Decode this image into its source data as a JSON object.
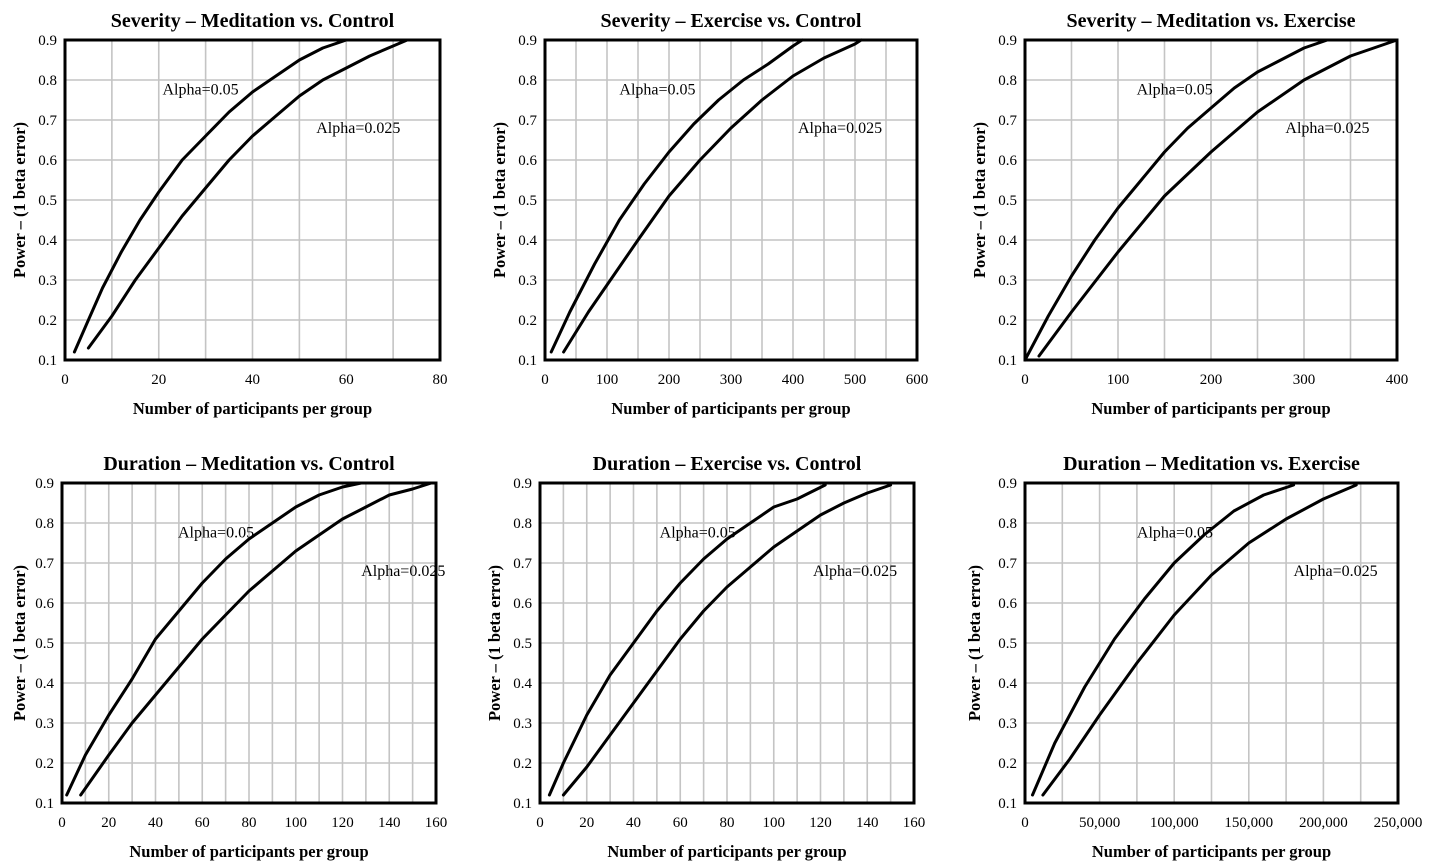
{
  "chart_data": [
    {
      "type": "line",
      "title": "Severity – Meditation vs. Control",
      "xlabel": "Number of participants per group",
      "ylabel": "Power – (1 beta error)",
      "xlim": [
        0,
        80
      ],
      "ylim": [
        0.1,
        0.9
      ],
      "xticks": [
        0,
        20,
        40,
        60,
        80
      ],
      "xtick_labels": [
        "0",
        "20",
        "40",
        "60",
        "80"
      ],
      "yticks": [
        0.1,
        0.2,
        0.3,
        0.4,
        0.5,
        0.6,
        0.7,
        0.8,
        0.9
      ],
      "ytick_labels": [
        "0.1",
        "0.2",
        "0.3",
        "0.4",
        "0.5",
        "0.6",
        "0.7",
        "0.8",
        "0.9"
      ],
      "grid": true,
      "series": [
        {
          "name": "Alpha=0.05",
          "x": [
            2,
            5,
            8,
            12,
            16,
            20,
            25,
            30,
            35,
            40,
            45,
            50,
            55,
            60
          ],
          "y": [
            0.12,
            0.2,
            0.28,
            0.37,
            0.45,
            0.52,
            0.6,
            0.66,
            0.72,
            0.77,
            0.81,
            0.85,
            0.88,
            0.9
          ]
        },
        {
          "name": "Alpha=0.025",
          "x": [
            5,
            10,
            15,
            20,
            25,
            30,
            35,
            40,
            45,
            50,
            55,
            60,
            65,
            70,
            73
          ],
          "y": [
            0.13,
            0.21,
            0.3,
            0.38,
            0.46,
            0.53,
            0.6,
            0.66,
            0.71,
            0.76,
            0.8,
            0.83,
            0.86,
            0.885,
            0.9
          ]
        }
      ]
    },
    {
      "type": "line",
      "title": "Severity – Exercise vs. Control",
      "xlabel": "Number of participants per group",
      "ylabel": "Power – (1 beta error)",
      "xlim": [
        0,
        600
      ],
      "ylim": [
        0.1,
        0.9
      ],
      "xticks": [
        0,
        100,
        200,
        300,
        400,
        500,
        600
      ],
      "xtick_labels": [
        "0",
        "100",
        "200",
        "300",
        "400",
        "500",
        "600"
      ],
      "yticks": [
        0.1,
        0.2,
        0.3,
        0.4,
        0.5,
        0.6,
        0.7,
        0.8,
        0.9
      ],
      "ytick_labels": [
        "0.1",
        "0.2",
        "0.3",
        "0.4",
        "0.5",
        "0.6",
        "0.7",
        "0.8",
        "0.9"
      ],
      "grid": true,
      "series": [
        {
          "name": "Alpha=0.05",
          "x": [
            10,
            40,
            80,
            120,
            160,
            200,
            240,
            280,
            320,
            360,
            400,
            415
          ],
          "y": [
            0.12,
            0.22,
            0.34,
            0.45,
            0.54,
            0.62,
            0.69,
            0.75,
            0.8,
            0.84,
            0.885,
            0.9
          ]
        },
        {
          "name": "Alpha=0.025",
          "x": [
            30,
            70,
            110,
            150,
            200,
            250,
            300,
            350,
            400,
            450,
            500,
            510
          ],
          "y": [
            0.12,
            0.22,
            0.31,
            0.4,
            0.51,
            0.6,
            0.68,
            0.75,
            0.81,
            0.855,
            0.89,
            0.9
          ]
        }
      ]
    },
    {
      "type": "line",
      "title": "Severity – Meditation vs. Exercise",
      "xlabel": "Number of participants per group",
      "ylabel": "Power – (1 beta error)",
      "xlim": [
        0,
        400
      ],
      "ylim": [
        0.1,
        0.9
      ],
      "xticks": [
        0,
        100,
        200,
        300,
        400
      ],
      "xtick_labels": [
        "0",
        "100",
        "200",
        "300",
        "400"
      ],
      "yticks": [
        0.1,
        0.2,
        0.3,
        0.4,
        0.5,
        0.6,
        0.7,
        0.8,
        0.9
      ],
      "ytick_labels": [
        "0.1",
        "0.2",
        "0.3",
        "0.4",
        "0.5",
        "0.6",
        "0.7",
        "0.8",
        "0.9"
      ],
      "grid": true,
      "series": [
        {
          "name": "Alpha=0.05",
          "x": [
            0,
            25,
            50,
            75,
            100,
            125,
            150,
            175,
            200,
            225,
            250,
            275,
            300,
            325
          ],
          "y": [
            0.1,
            0.21,
            0.31,
            0.4,
            0.48,
            0.55,
            0.62,
            0.68,
            0.73,
            0.78,
            0.82,
            0.85,
            0.88,
            0.9
          ]
        },
        {
          "name": "Alpha=0.025",
          "x": [
            15,
            50,
            100,
            150,
            200,
            250,
            300,
            350,
            400
          ],
          "y": [
            0.11,
            0.22,
            0.37,
            0.51,
            0.62,
            0.72,
            0.8,
            0.86,
            0.9
          ]
        }
      ]
    },
    {
      "type": "line",
      "title": "Duration – Meditation vs. Control",
      "xlabel": "Number of participants per group",
      "ylabel": "Power – (1 beta error)",
      "xlim": [
        0,
        160
      ],
      "ylim": [
        0.1,
        0.9
      ],
      "xticks": [
        0,
        20,
        40,
        60,
        80,
        100,
        120,
        140,
        160
      ],
      "xtick_labels": [
        "0",
        "20",
        "40",
        "60",
        "80",
        "100",
        "120",
        "140",
        "160"
      ],
      "yticks": [
        0.1,
        0.2,
        0.3,
        0.4,
        0.5,
        0.6,
        0.7,
        0.8,
        0.9
      ],
      "ytick_labels": [
        "0.1",
        "0.2",
        "0.3",
        "0.4",
        "0.5",
        "0.6",
        "0.7",
        "0.8",
        "0.9"
      ],
      "grid": true,
      "series": [
        {
          "name": "Alpha=0.05",
          "x": [
            2,
            10,
            20,
            30,
            40,
            50,
            60,
            70,
            80,
            90,
            100,
            110,
            120,
            128
          ],
          "y": [
            0.12,
            0.22,
            0.32,
            0.41,
            0.51,
            0.58,
            0.65,
            0.71,
            0.76,
            0.8,
            0.84,
            0.87,
            0.89,
            0.9
          ]
        },
        {
          "name": "Alpha=0.025",
          "x": [
            8,
            20,
            30,
            40,
            50,
            60,
            70,
            80,
            90,
            100,
            110,
            120,
            130,
            140,
            150,
            158
          ],
          "y": [
            0.12,
            0.22,
            0.3,
            0.37,
            0.44,
            0.51,
            0.57,
            0.63,
            0.68,
            0.73,
            0.77,
            0.81,
            0.84,
            0.87,
            0.885,
            0.9
          ]
        }
      ]
    },
    {
      "type": "line",
      "title": "Duration – Exercise vs. Control",
      "xlabel": "Number of participants per group",
      "ylabel": "Power – (1 beta error)",
      "xlim": [
        0,
        160
      ],
      "ylim": [
        0.1,
        0.9
      ],
      "xticks": [
        0,
        20,
        40,
        60,
        80,
        100,
        120,
        140,
        160
      ],
      "xtick_labels": [
        "0",
        "20",
        "40",
        "60",
        "80",
        "100",
        "120",
        "140",
        "160"
      ],
      "yticks": [
        0.1,
        0.2,
        0.3,
        0.4,
        0.5,
        0.6,
        0.7,
        0.8,
        0.9
      ],
      "ytick_labels": [
        "0.1",
        "0.2",
        "0.3",
        "0.4",
        "0.5",
        "0.6",
        "0.7",
        "0.8",
        "0.9"
      ],
      "grid": true,
      "series": [
        {
          "name": "Alpha=0.05",
          "x": [
            4,
            10,
            20,
            30,
            40,
            50,
            60,
            70,
            80,
            90,
            100,
            110,
            122
          ],
          "y": [
            0.12,
            0.2,
            0.32,
            0.42,
            0.5,
            0.58,
            0.65,
            0.71,
            0.76,
            0.8,
            0.84,
            0.86,
            0.895
          ]
        },
        {
          "name": "Alpha=0.025",
          "x": [
            10,
            20,
            30,
            40,
            50,
            60,
            70,
            80,
            90,
            100,
            110,
            120,
            130,
            140,
            150
          ],
          "y": [
            0.12,
            0.19,
            0.27,
            0.35,
            0.43,
            0.51,
            0.58,
            0.64,
            0.69,
            0.74,
            0.78,
            0.82,
            0.85,
            0.875,
            0.895
          ]
        }
      ]
    },
    {
      "type": "line",
      "title": "Duration – Meditation vs. Exercise",
      "xlabel": "Number of participants per group",
      "ylabel": "Power – (1 beta error)",
      "xlim": [
        0,
        250000
      ],
      "ylim": [
        0.1,
        0.9
      ],
      "xticks": [
        0,
        50000,
        100000,
        150000,
        200000,
        250000
      ],
      "xtick_labels": [
        "0",
        "50,000",
        "100,000",
        "150,000",
        "200,000",
        "250,000"
      ],
      "yticks": [
        0.1,
        0.2,
        0.3,
        0.4,
        0.5,
        0.6,
        0.7,
        0.8,
        0.9
      ],
      "ytick_labels": [
        "0.1",
        "0.2",
        "0.3",
        "0.4",
        "0.5",
        "0.6",
        "0.7",
        "0.8",
        "0.9"
      ],
      "grid": true,
      "series": [
        {
          "name": "Alpha=0.05",
          "x": [
            5000,
            20000,
            40000,
            60000,
            80000,
            100000,
            120000,
            140000,
            160000,
            180000
          ],
          "y": [
            0.12,
            0.25,
            0.39,
            0.51,
            0.61,
            0.7,
            0.77,
            0.83,
            0.87,
            0.895
          ]
        },
        {
          "name": "Alpha=0.025",
          "x": [
            12000,
            30000,
            50000,
            75000,
            100000,
            125000,
            150000,
            175000,
            200000,
            222000
          ],
          "y": [
            0.12,
            0.21,
            0.32,
            0.45,
            0.57,
            0.67,
            0.75,
            0.81,
            0.86,
            0.895
          ]
        }
      ]
    }
  ]
}
